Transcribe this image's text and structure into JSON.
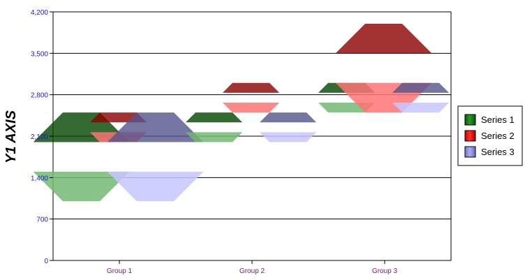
{
  "chart_data": {
    "type": "floating-bar",
    "ylabel": "Y1 AXIS",
    "xlabel": "",
    "title": "",
    "ylim": [
      0,
      4200
    ],
    "yticks": [
      0,
      700,
      1400,
      2100,
      2800,
      3500,
      4200
    ],
    "ytick_labels": [
      "0",
      "700",
      "1,400",
      "2,100",
      "2,800",
      "3,500",
      "4,200"
    ],
    "categories": [
      "Group 1",
      "Group 2",
      "Group 3"
    ],
    "baseline": 2500,
    "grid": true,
    "legend_position": "right",
    "series": [
      {
        "name": "Series 1",
        "color": "#008000",
        "values": [
          1000,
          2000,
          3000
        ]
      },
      {
        "name": "Series 2",
        "color": "#ff0000",
        "values": [
          2000,
          3000,
          4000
        ]
      },
      {
        "name": "Series 3",
        "color": "#9999ff",
        "values": [
          1000,
          2000,
          3000
        ]
      }
    ]
  }
}
